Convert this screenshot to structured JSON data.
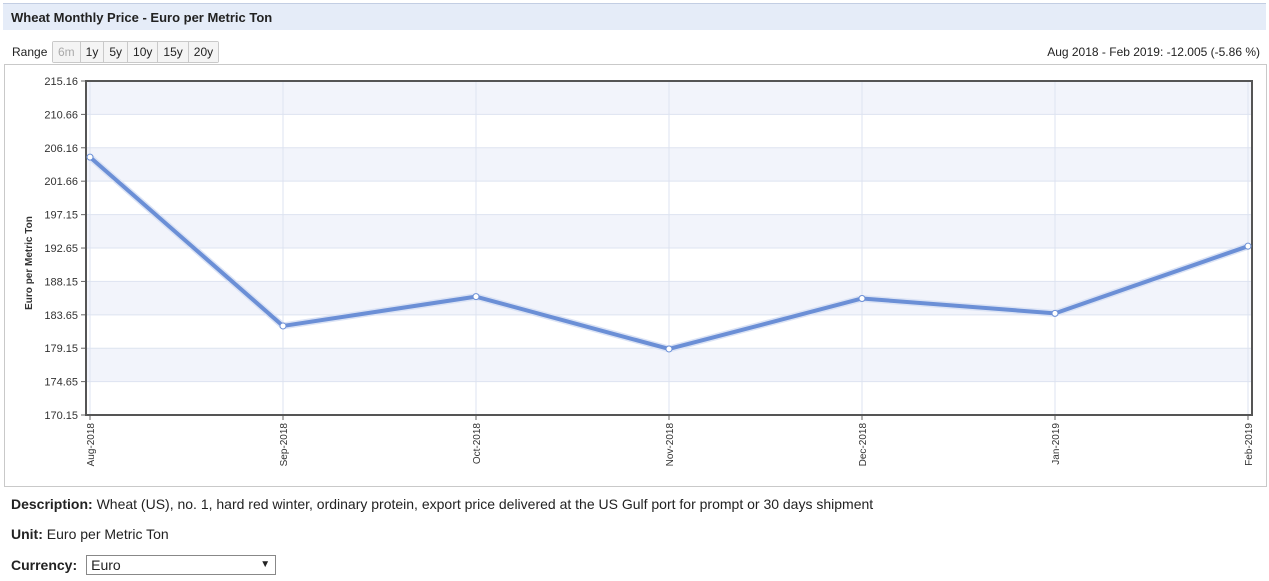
{
  "header": {
    "title": "Wheat Monthly Price - Euro per Metric Ton"
  },
  "toolbar": {
    "range_label": "Range",
    "ranges": [
      "6m",
      "1y",
      "5y",
      "10y",
      "15y",
      "20y"
    ],
    "change_summary": "Aug 2018 - Feb 2019: -12.005 (-5.86 %)"
  },
  "chart_data": {
    "type": "line",
    "categories": [
      "Aug-2018",
      "Sep-2018",
      "Oct-2018",
      "Nov-2018",
      "Dec-2018",
      "Jan-2019",
      "Feb-2019"
    ],
    "series": [
      {
        "values": [
          204.9,
          182.15,
          186.1,
          179.05,
          185.85,
          183.85,
          192.9
        ]
      }
    ],
    "yticks": [
      "170.15",
      "174.65",
      "179.15",
      "183.65",
      "188.15",
      "192.65",
      "197.15",
      "201.66",
      "206.16",
      "210.66",
      "215.16"
    ],
    "ylim": [
      170.15,
      215.16
    ],
    "ylabel": "Euro per Metric Ton",
    "xlabel": "",
    "grid": true,
    "colors": {
      "line": "#6b8fd6",
      "band": "#f2f4fb"
    }
  },
  "details": {
    "description_label": "Description:",
    "description_text": "Wheat (US), no. 1, hard red winter, ordinary protein, export price delivered at the US Gulf port for prompt or 30 days shipment",
    "unit_label": "Unit:",
    "unit_text": "Euro per Metric Ton",
    "currency_label": "Currency:",
    "currency_value": "Euro"
  }
}
